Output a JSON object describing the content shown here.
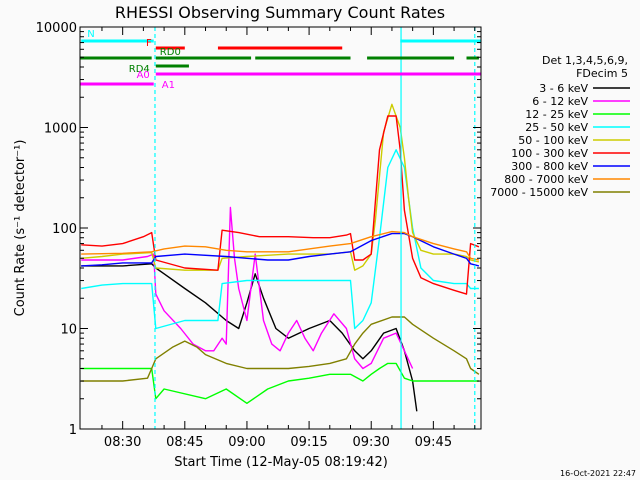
{
  "chart_data": {
    "type": "line",
    "title": "RHESSI Observing Summary Count Rates",
    "xlabel": "Start Time (12-May-05 08:19:42)",
    "ylabel": "Count Rate (s⁻¹ detector⁻¹)",
    "yscale": "log",
    "ylim": [
      1,
      10000
    ],
    "xlim_min": [
      19.7,
      116.5
    ],
    "y_ticks": [
      {
        "v": 1,
        "label": "1"
      },
      {
        "v": 10,
        "label": "10"
      },
      {
        "v": 100,
        "label": "100"
      },
      {
        "v": 1000,
        "label": "1000"
      },
      {
        "v": 10000,
        "label": "10000"
      }
    ],
    "x_ticks": [
      {
        "v": 30,
        "label": "08:30"
      },
      {
        "v": 45,
        "label": "08:45"
      },
      {
        "v": 60,
        "label": "09:00"
      },
      {
        "v": 75,
        "label": "09:15"
      },
      {
        "v": 90,
        "label": "09:30"
      },
      {
        "v": 105,
        "label": "09:45"
      }
    ],
    "legend_header": [
      "Det 1,3,4,5,6,9,",
      "FDecim 5"
    ],
    "series": [
      {
        "name": "3 - 6 keV",
        "color": "#000000",
        "points": [
          [
            20,
            42
          ],
          [
            30,
            42
          ],
          [
            37,
            44
          ],
          [
            38,
            40
          ],
          [
            40,
            35
          ],
          [
            45,
            25
          ],
          [
            50,
            18
          ],
          [
            55,
            12
          ],
          [
            58,
            10
          ],
          [
            60,
            18
          ],
          [
            62,
            35
          ],
          [
            64,
            20
          ],
          [
            67,
            10
          ],
          [
            70,
            8
          ],
          [
            75,
            10
          ],
          [
            80,
            12
          ],
          [
            83,
            9
          ],
          [
            86,
            6
          ],
          [
            88,
            5
          ],
          [
            90,
            6
          ],
          [
            93,
            9
          ],
          [
            96,
            10
          ],
          [
            98,
            6
          ],
          [
            100,
            3
          ],
          [
            101,
            1.5
          ]
        ]
      },
      {
        "name": "6 - 12 keV",
        "color": "#ff00ff",
        "points": [
          [
            20,
            48
          ],
          [
            30,
            48
          ],
          [
            36,
            52
          ],
          [
            37.5,
            55
          ],
          [
            38,
            22
          ],
          [
            40,
            15
          ],
          [
            44,
            10
          ],
          [
            47,
            7
          ],
          [
            50,
            6
          ],
          [
            52,
            6
          ],
          [
            54,
            8
          ],
          [
            55,
            7
          ],
          [
            56,
            160
          ],
          [
            57,
            50
          ],
          [
            58,
            25
          ],
          [
            60,
            12
          ],
          [
            62,
            55
          ],
          [
            64,
            12
          ],
          [
            66,
            7
          ],
          [
            68,
            6
          ],
          [
            70,
            9
          ],
          [
            72,
            12
          ],
          [
            74,
            8
          ],
          [
            76,
            6
          ],
          [
            78,
            9
          ],
          [
            81,
            14
          ],
          [
            84,
            10
          ],
          [
            86,
            5
          ],
          [
            88,
            4
          ],
          [
            90,
            4.5
          ],
          [
            93,
            8
          ],
          [
            96,
            9
          ],
          [
            98,
            6
          ],
          [
            100,
            4
          ]
        ]
      },
      {
        "name": "12 - 25 keV",
        "color": "#00ff00",
        "points": [
          [
            20,
            4
          ],
          [
            30,
            4
          ],
          [
            37,
            4
          ],
          [
            38,
            2
          ],
          [
            40,
            2.5
          ],
          [
            50,
            2
          ],
          [
            55,
            2.5
          ],
          [
            60,
            1.8
          ],
          [
            65,
            2.5
          ],
          [
            70,
            3
          ],
          [
            75,
            3.2
          ],
          [
            80,
            3.5
          ],
          [
            85,
            3.5
          ],
          [
            88,
            3
          ],
          [
            90,
            3.5
          ],
          [
            92,
            4
          ],
          [
            94,
            4.5
          ],
          [
            96,
            4.5
          ],
          [
            98,
            3.2
          ],
          [
            100,
            3
          ],
          [
            105,
            3
          ],
          [
            110,
            3
          ],
          [
            116,
            3
          ]
        ]
      },
      {
        "name": "25 - 50 keV",
        "color": "#00ffff",
        "points": [
          [
            20,
            25
          ],
          [
            25,
            27
          ],
          [
            30,
            28
          ],
          [
            37,
            28
          ],
          [
            38,
            10
          ],
          [
            45,
            12
          ],
          [
            53,
            12
          ],
          [
            54,
            28
          ],
          [
            60,
            30
          ],
          [
            70,
            30
          ],
          [
            80,
            30
          ],
          [
            85,
            30
          ],
          [
            86,
            10
          ],
          [
            88,
            12
          ],
          [
            90,
            18
          ],
          [
            92,
            80
          ],
          [
            94,
            400
          ],
          [
            96,
            600
          ],
          [
            98,
            400
          ],
          [
            100,
            100
          ],
          [
            102,
            40
          ],
          [
            105,
            30
          ],
          [
            110,
            28
          ],
          [
            113,
            28
          ],
          [
            114,
            25
          ],
          [
            116,
            25
          ]
        ]
      },
      {
        "name": "50 - 100 keV",
        "color": "#cccc00",
        "points": [
          [
            20,
            50
          ],
          [
            25,
            52
          ],
          [
            30,
            55
          ],
          [
            37,
            57
          ],
          [
            38,
            40
          ],
          [
            45,
            38
          ],
          [
            53,
            38
          ],
          [
            54,
            50
          ],
          [
            60,
            52
          ],
          [
            70,
            55
          ],
          [
            80,
            55
          ],
          [
            85,
            58
          ],
          [
            86,
            38
          ],
          [
            88,
            42
          ],
          [
            90,
            55
          ],
          [
            91,
            120
          ],
          [
            93,
            900
          ],
          [
            95,
            1700
          ],
          [
            97,
            1000
          ],
          [
            98,
            500
          ],
          [
            99,
            200
          ],
          [
            100,
            90
          ],
          [
            102,
            60
          ],
          [
            105,
            55
          ],
          [
            110,
            55
          ],
          [
            113,
            52
          ],
          [
            114,
            48
          ],
          [
            116,
            46
          ]
        ]
      },
      {
        "name": "100 - 300 keV",
        "color": "#ff0000",
        "points": [
          [
            20,
            68
          ],
          [
            25,
            66
          ],
          [
            30,
            70
          ],
          [
            35,
            82
          ],
          [
            37,
            90
          ],
          [
            38,
            48
          ],
          [
            45,
            40
          ],
          [
            53,
            38
          ],
          [
            54,
            95
          ],
          [
            58,
            90
          ],
          [
            63,
            82
          ],
          [
            70,
            82
          ],
          [
            76,
            80
          ],
          [
            80,
            80
          ],
          [
            84,
            85
          ],
          [
            85,
            88
          ],
          [
            86,
            48
          ],
          [
            88,
            48
          ],
          [
            90,
            55
          ],
          [
            92,
            600
          ],
          [
            94,
            1300
          ],
          [
            96,
            1300
          ],
          [
            97,
            600
          ],
          [
            98,
            150
          ],
          [
            100,
            50
          ],
          [
            102,
            32
          ],
          [
            105,
            28
          ],
          [
            110,
            24
          ],
          [
            113,
            22
          ],
          [
            114,
            70
          ],
          [
            116,
            65
          ]
        ]
      },
      {
        "name": "300 - 800 keV",
        "color": "#0000ff",
        "points": [
          [
            20,
            42
          ],
          [
            25,
            43
          ],
          [
            30,
            45
          ],
          [
            37,
            45
          ],
          [
            38,
            52
          ],
          [
            45,
            55
          ],
          [
            55,
            52
          ],
          [
            60,
            50
          ],
          [
            65,
            48
          ],
          [
            70,
            48
          ],
          [
            75,
            52
          ],
          [
            80,
            55
          ],
          [
            85,
            58
          ],
          [
            90,
            75
          ],
          [
            95,
            88
          ],
          [
            98,
            88
          ],
          [
            100,
            82
          ],
          [
            105,
            65
          ],
          [
            110,
            55
          ],
          [
            113,
            50
          ],
          [
            114,
            44
          ],
          [
            116,
            42
          ]
        ]
      },
      {
        "name": "800 - 7000 keV",
        "color": "#ff8800",
        "points": [
          [
            20,
            55
          ],
          [
            30,
            56
          ],
          [
            37,
            58
          ],
          [
            40,
            62
          ],
          [
            45,
            66
          ],
          [
            50,
            65
          ],
          [
            55,
            60
          ],
          [
            60,
            58
          ],
          [
            65,
            58
          ],
          [
            70,
            58
          ],
          [
            75,
            62
          ],
          [
            80,
            66
          ],
          [
            85,
            70
          ],
          [
            90,
            82
          ],
          [
            95,
            92
          ],
          [
            98,
            90
          ],
          [
            100,
            82
          ],
          [
            105,
            70
          ],
          [
            110,
            62
          ],
          [
            113,
            58
          ],
          [
            114,
            50
          ],
          [
            116,
            48
          ]
        ]
      },
      {
        "name": "7000 - 15000 keV",
        "color": "#808000",
        "points": [
          [
            20,
            3
          ],
          [
            30,
            3
          ],
          [
            36,
            3.2
          ],
          [
            37,
            4
          ],
          [
            38,
            5
          ],
          [
            42,
            6.5
          ],
          [
            45,
            7.5
          ],
          [
            48,
            6.5
          ],
          [
            50,
            5.5
          ],
          [
            55,
            4.5
          ],
          [
            60,
            4
          ],
          [
            65,
            4
          ],
          [
            70,
            4
          ],
          [
            75,
            4.2
          ],
          [
            80,
            4.5
          ],
          [
            84,
            5
          ],
          [
            86,
            7
          ],
          [
            88,
            9
          ],
          [
            90,
            11
          ],
          [
            95,
            13
          ],
          [
            98,
            13
          ],
          [
            100,
            11
          ],
          [
            105,
            8
          ],
          [
            110,
            6
          ],
          [
            113,
            5
          ],
          [
            114,
            4
          ],
          [
            116,
            3.5
          ]
        ]
      }
    ],
    "attenuator_bars": [
      {
        "label": "N",
        "color": "#00ffff",
        "level": "top",
        "segments": [
          [
            20,
            37.5
          ],
          [
            97,
            116.5
          ]
        ]
      },
      {
        "label": "F",
        "color": "#ff0000",
        "level": "upper",
        "segments": [
          [
            38,
            45
          ],
          [
            53,
            83
          ]
        ]
      },
      {
        "label": "RD0",
        "color": "#008000",
        "level": "middle",
        "segments": [
          [
            18.5,
            37
          ],
          [
            38,
            61
          ],
          [
            62,
            85
          ],
          [
            89,
            110
          ],
          [
            113,
            116
          ]
        ]
      },
      {
        "label": "RD4",
        "color": "#008000",
        "level": "middle-low",
        "segments": [
          [
            38,
            46
          ]
        ]
      },
      {
        "label": "A0",
        "color": "#ff00ff",
        "level": "low",
        "segments": [
          [
            38,
            116.5
          ]
        ]
      },
      {
        "label": "A1",
        "color": "#ff00ff",
        "level": "bottom",
        "segments": [
          [
            18.5,
            37.5
          ]
        ]
      }
    ],
    "vertical_markers": [
      {
        "x": 37.8,
        "color": "#00ffff",
        "style": "dashed"
      },
      {
        "x": 97.2,
        "color": "#00ffff",
        "style": "solid"
      },
      {
        "x": 115.0,
        "color": "#00ffff",
        "style": "dashed"
      }
    ]
  },
  "footer": {
    "timestamp": "16-Oct-2021 22:47"
  }
}
